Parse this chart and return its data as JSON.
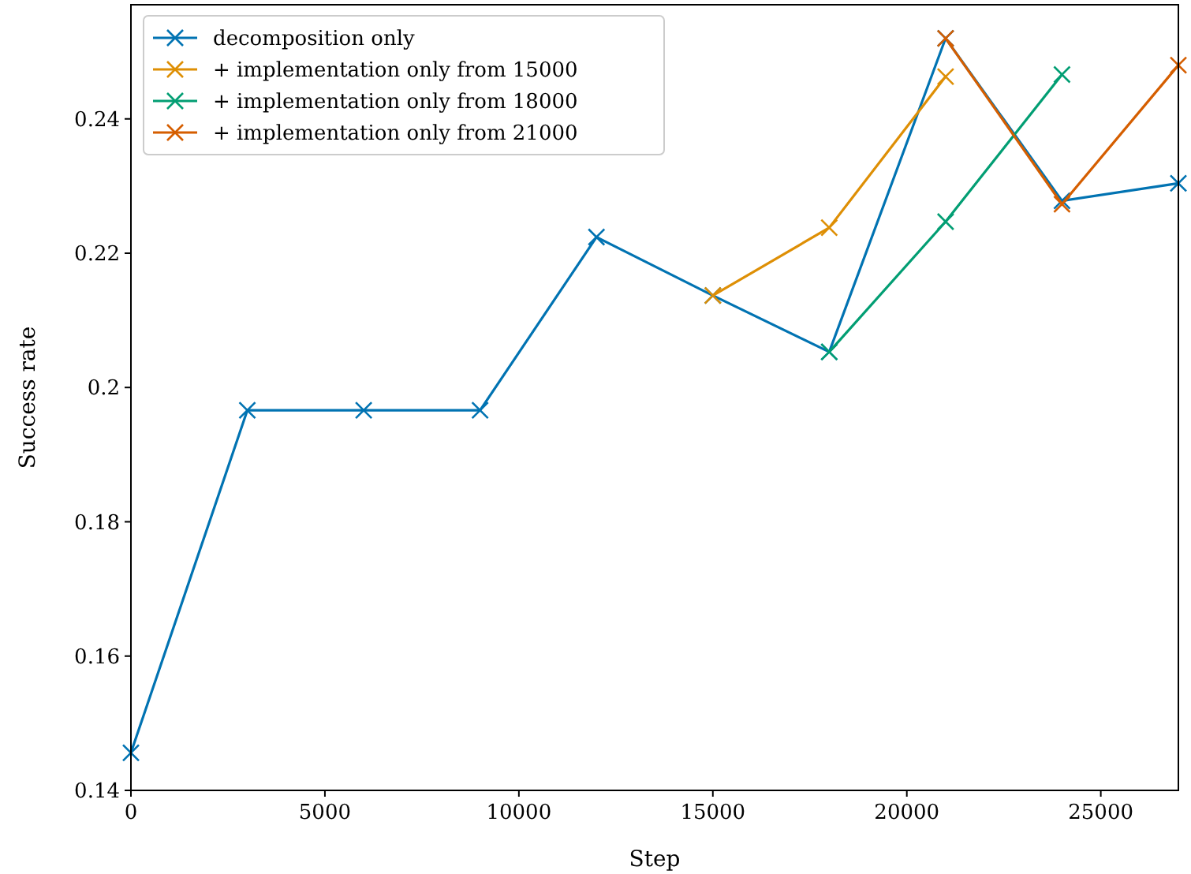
{
  "chart_data": {
    "type": "line",
    "xlabel": "Step",
    "ylabel": "Success rate",
    "xlim": [
      0,
      27000
    ],
    "ylim": [
      0.14,
      0.257
    ],
    "xticks": [
      0,
      5000,
      10000,
      15000,
      20000,
      25000
    ],
    "yticks": [
      0.14,
      0.16,
      0.18,
      0.2,
      0.22,
      0.24
    ],
    "marker": "cross",
    "line_style": "solid",
    "legend": "top left",
    "grid": false,
    "series": [
      {
        "name": "decomposition only",
        "color": "#0173b2",
        "x": [
          0,
          3000,
          6000,
          9000,
          12000,
          15000,
          18000,
          21000,
          24000,
          27000
        ],
        "values": [
          0.1456,
          0.1966,
          0.1966,
          0.1966,
          0.2224,
          0.2137,
          0.2053,
          0.252,
          0.2278,
          0.2304
        ]
      },
      {
        "name": "+ implementation only from 15000",
        "color": "#de8f05",
        "x": [
          15000,
          18000,
          21000
        ],
        "values": [
          0.2137,
          0.2238,
          0.2463
        ]
      },
      {
        "name": "+ implementation only from 18000",
        "color": "#029e73",
        "x": [
          18000,
          21000,
          24000
        ],
        "values": [
          0.2053,
          0.2247,
          0.2466
        ]
      },
      {
        "name": "+ implementation only from 21000",
        "color": "#d55e00",
        "x": [
          21000,
          24000,
          27000
        ],
        "values": [
          0.252,
          0.2273,
          0.248
        ]
      }
    ]
  }
}
